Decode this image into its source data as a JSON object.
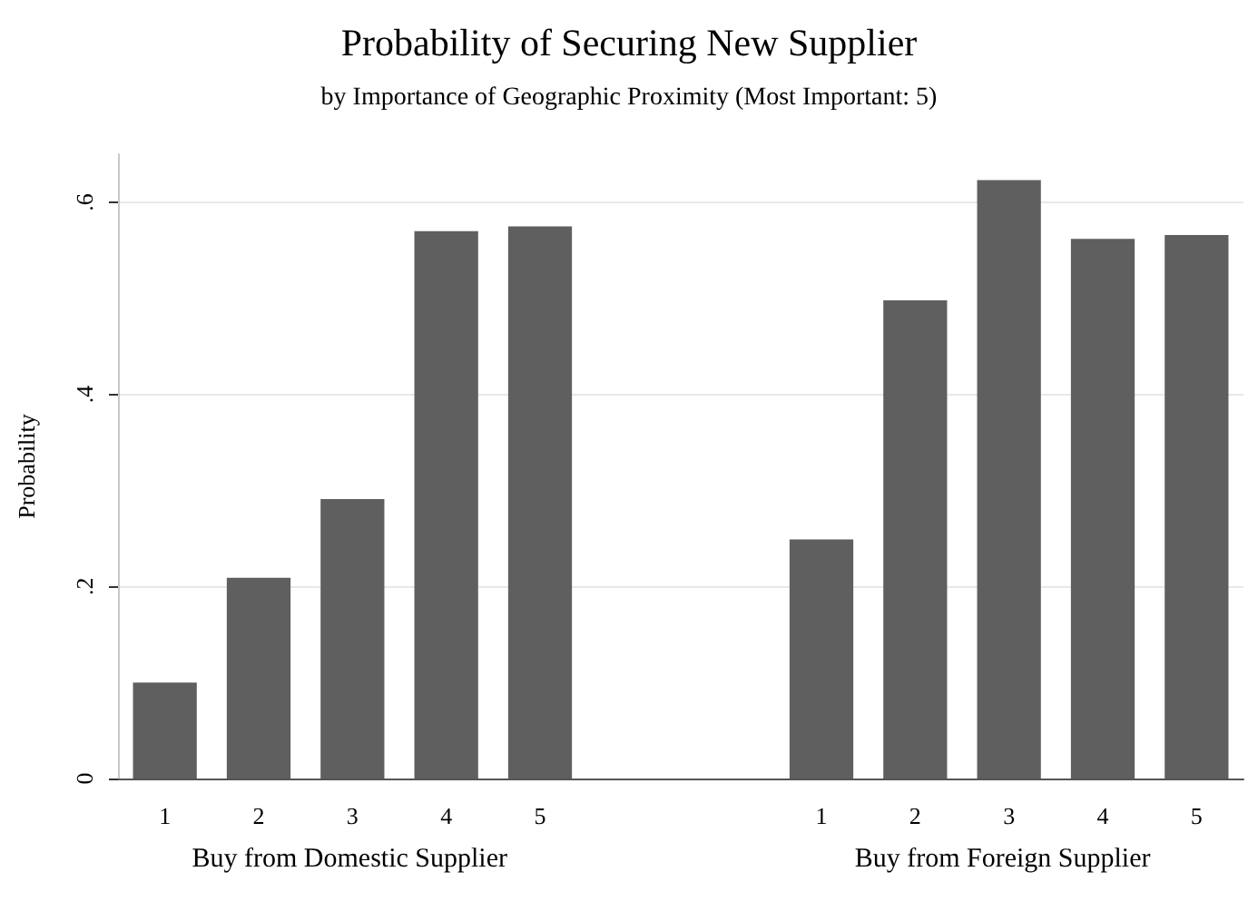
{
  "chart_data": {
    "type": "bar",
    "title": "Probability of Securing New Supplier",
    "subtitle": "by Importance of Geographic Proximity (Most Important: 5)",
    "ylabel": "Probability",
    "categories": [
      "1",
      "2",
      "3",
      "4",
      "5",
      null,
      null,
      "1",
      "2",
      "3",
      "4",
      "5"
    ],
    "values": [
      0.1,
      0.209,
      0.291,
      0.57,
      0.575,
      null,
      null,
      0.249,
      0.498,
      0.623,
      0.562,
      0.566
    ],
    "color": "#5f5f5f",
    "ylim": [
      0,
      0.65
    ],
    "yticks": [
      0,
      {
        "value": 0.2,
        "label": ".2"
      },
      {
        "value": 0.4,
        "label": ".4"
      },
      {
        "value": 0.6,
        "label": ".6"
      }
    ],
    "grid": "y",
    "annotations": [
      "Buy from Domestic Supplier",
      "Buy from Foreign Supplier"
    ]
  }
}
